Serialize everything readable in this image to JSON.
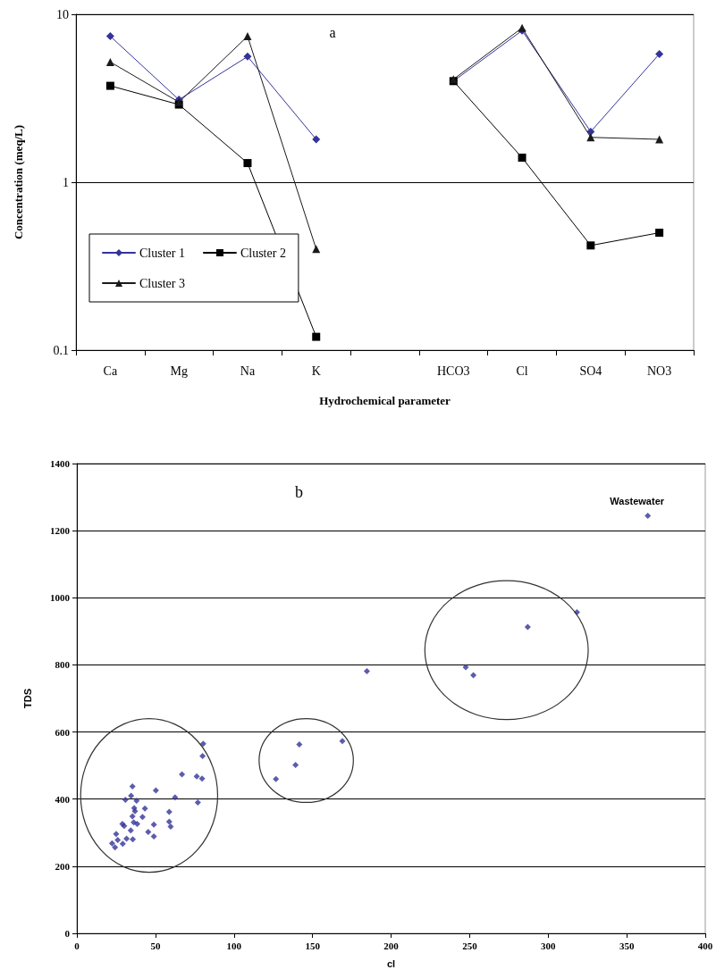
{
  "chart_data": [
    {
      "type": "line",
      "xlabel": "Hydrochemical parameter",
      "ylabel": "Concentration (meq/L)",
      "annotations": [
        "a"
      ],
      "categories": [
        "Ca",
        "Mg",
        "Na",
        "K",
        null,
        "HCO3",
        "Cl",
        "SO4",
        "NO3"
      ],
      "series": [
        {
          "name": "Cluster 1",
          "color": "#333399",
          "marker": "diamond",
          "values": [
            7.4,
            3.1,
            5.6,
            1.8,
            null,
            4.0,
            8.0,
            2.0,
            5.8
          ]
        },
        {
          "name": "Cluster 2",
          "color": "#000000",
          "marker": "square",
          "values": [
            3.75,
            2.9,
            1.3,
            0.12,
            null,
            4.0,
            1.4,
            0.42,
            0.5
          ]
        },
        {
          "name": "Cluster 3",
          "color": "#1a1a1a",
          "marker": "triangle",
          "values": [
            5.2,
            3.0,
            7.4,
            0.4,
            null,
            4.1,
            8.3,
            1.85,
            1.8
          ]
        }
      ],
      "log": "y",
      "ylim": [
        0.1,
        10
      ],
      "yticks": [
        0.1,
        1,
        10
      ],
      "grid": "y",
      "legend": "bottom left",
      "line_style": "solid"
    },
    {
      "type": "scatter",
      "xlabel": "cl",
      "ylabel": "TDS",
      "annotations": [
        "b",
        {
          "text": "Wastewater",
          "x": 363.4,
          "y": 1244
        }
      ],
      "series": [
        {
          "color": "#333399",
          "marker": "diamond",
          "x": [
            80.4,
            80,
            66.9,
            76.3,
            79.7,
            50.3,
            62.5,
            77,
            35.4,
            34.5,
            30.9,
            38,
            36.5,
            43.3,
            58.8,
            37,
            35.4,
            41.8,
            36.2,
            38.4,
            58.8,
            59.7,
            49,
            29,
            30.1,
            34.3,
            45.4,
            49,
            35.6,
            31.6,
            25,
            26,
            29.2,
            22.4,
            24.3,
            126.7,
            139.2,
            141.6,
            169,
            184.6,
            247.5,
            252.4,
            287,
            318.3,
            363.4
          ],
          "values": [
            565,
            528,
            474,
            468,
            461,
            426,
            405,
            390,
            438,
            410,
            398,
            395,
            373,
            372,
            362,
            364,
            349,
            347,
            331,
            326,
            333,
            318,
            324,
            326,
            320,
            307,
            302,
            289,
            280,
            282,
            296,
            278,
            267,
            268,
            256,
            460,
            502,
            563,
            573,
            781,
            793,
            769,
            913,
            957,
            1244
          ]
        }
      ],
      "xlim": [
        0,
        400
      ],
      "xticks": [
        0,
        50,
        100,
        150,
        200,
        250,
        300,
        350,
        400
      ],
      "ylim": [
        0,
        1400
      ],
      "yticks": [
        0,
        200,
        400,
        600,
        800,
        1000,
        1200,
        1400
      ],
      "grid": "y",
      "legend": false
    }
  ]
}
